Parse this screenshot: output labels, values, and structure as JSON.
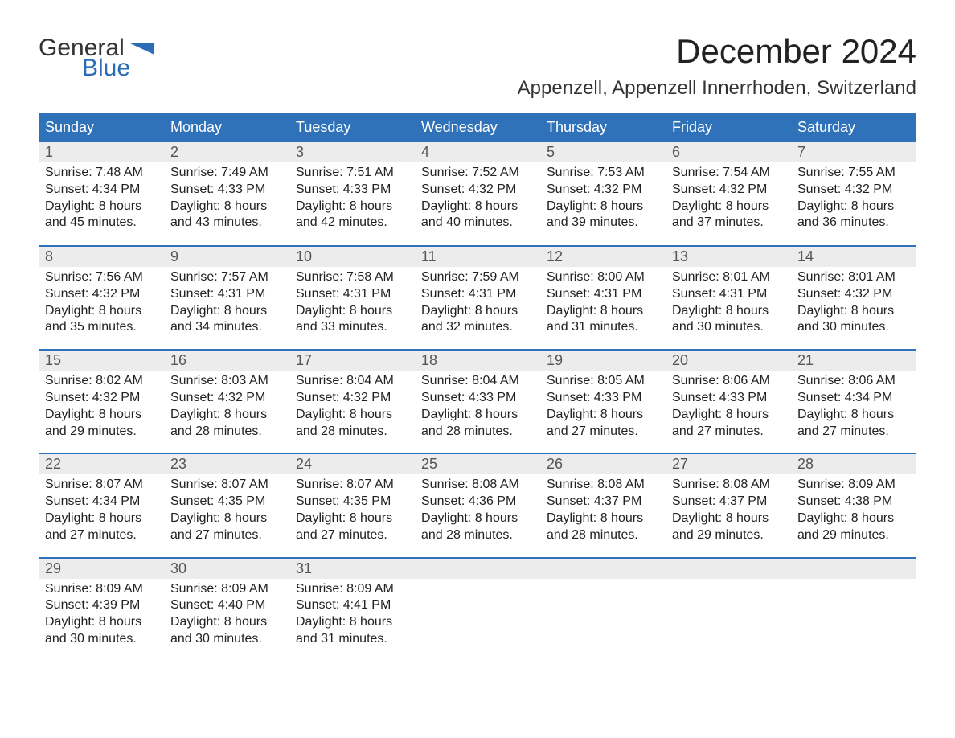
{
  "logo": {
    "general": "General",
    "blue": "Blue",
    "flag_color": "#2a6db6"
  },
  "title": "December 2024",
  "location": "Appenzell, Appenzell Innerrhoden, Switzerland",
  "colors": {
    "header_bg": "#2f72b9",
    "header_text": "#ffffff",
    "daybar_bg": "#ececec",
    "week_border": "#2f72b9",
    "text": "#222222",
    "daynum": "#555555"
  },
  "weekdays": [
    "Sunday",
    "Monday",
    "Tuesday",
    "Wednesday",
    "Thursday",
    "Friday",
    "Saturday"
  ],
  "weeks": [
    [
      {
        "n": "1",
        "sr": "Sunrise: 7:48 AM",
        "ss": "Sunset: 4:34 PM",
        "dl1": "Daylight: 8 hours",
        "dl2": "and 45 minutes."
      },
      {
        "n": "2",
        "sr": "Sunrise: 7:49 AM",
        "ss": "Sunset: 4:33 PM",
        "dl1": "Daylight: 8 hours",
        "dl2": "and 43 minutes."
      },
      {
        "n": "3",
        "sr": "Sunrise: 7:51 AM",
        "ss": "Sunset: 4:33 PM",
        "dl1": "Daylight: 8 hours",
        "dl2": "and 42 minutes."
      },
      {
        "n": "4",
        "sr": "Sunrise: 7:52 AM",
        "ss": "Sunset: 4:32 PM",
        "dl1": "Daylight: 8 hours",
        "dl2": "and 40 minutes."
      },
      {
        "n": "5",
        "sr": "Sunrise: 7:53 AM",
        "ss": "Sunset: 4:32 PM",
        "dl1": "Daylight: 8 hours",
        "dl2": "and 39 minutes."
      },
      {
        "n": "6",
        "sr": "Sunrise: 7:54 AM",
        "ss": "Sunset: 4:32 PM",
        "dl1": "Daylight: 8 hours",
        "dl2": "and 37 minutes."
      },
      {
        "n": "7",
        "sr": "Sunrise: 7:55 AM",
        "ss": "Sunset: 4:32 PM",
        "dl1": "Daylight: 8 hours",
        "dl2": "and 36 minutes."
      }
    ],
    [
      {
        "n": "8",
        "sr": "Sunrise: 7:56 AM",
        "ss": "Sunset: 4:32 PM",
        "dl1": "Daylight: 8 hours",
        "dl2": "and 35 minutes."
      },
      {
        "n": "9",
        "sr": "Sunrise: 7:57 AM",
        "ss": "Sunset: 4:31 PM",
        "dl1": "Daylight: 8 hours",
        "dl2": "and 34 minutes."
      },
      {
        "n": "10",
        "sr": "Sunrise: 7:58 AM",
        "ss": "Sunset: 4:31 PM",
        "dl1": "Daylight: 8 hours",
        "dl2": "and 33 minutes."
      },
      {
        "n": "11",
        "sr": "Sunrise: 7:59 AM",
        "ss": "Sunset: 4:31 PM",
        "dl1": "Daylight: 8 hours",
        "dl2": "and 32 minutes."
      },
      {
        "n": "12",
        "sr": "Sunrise: 8:00 AM",
        "ss": "Sunset: 4:31 PM",
        "dl1": "Daylight: 8 hours",
        "dl2": "and 31 minutes."
      },
      {
        "n": "13",
        "sr": "Sunrise: 8:01 AM",
        "ss": "Sunset: 4:31 PM",
        "dl1": "Daylight: 8 hours",
        "dl2": "and 30 minutes."
      },
      {
        "n": "14",
        "sr": "Sunrise: 8:01 AM",
        "ss": "Sunset: 4:32 PM",
        "dl1": "Daylight: 8 hours",
        "dl2": "and 30 minutes."
      }
    ],
    [
      {
        "n": "15",
        "sr": "Sunrise: 8:02 AM",
        "ss": "Sunset: 4:32 PM",
        "dl1": "Daylight: 8 hours",
        "dl2": "and 29 minutes."
      },
      {
        "n": "16",
        "sr": "Sunrise: 8:03 AM",
        "ss": "Sunset: 4:32 PM",
        "dl1": "Daylight: 8 hours",
        "dl2": "and 28 minutes."
      },
      {
        "n": "17",
        "sr": "Sunrise: 8:04 AM",
        "ss": "Sunset: 4:32 PM",
        "dl1": "Daylight: 8 hours",
        "dl2": "and 28 minutes."
      },
      {
        "n": "18",
        "sr": "Sunrise: 8:04 AM",
        "ss": "Sunset: 4:33 PM",
        "dl1": "Daylight: 8 hours",
        "dl2": "and 28 minutes."
      },
      {
        "n": "19",
        "sr": "Sunrise: 8:05 AM",
        "ss": "Sunset: 4:33 PM",
        "dl1": "Daylight: 8 hours",
        "dl2": "and 27 minutes."
      },
      {
        "n": "20",
        "sr": "Sunrise: 8:06 AM",
        "ss": "Sunset: 4:33 PM",
        "dl1": "Daylight: 8 hours",
        "dl2": "and 27 minutes."
      },
      {
        "n": "21",
        "sr": "Sunrise: 8:06 AM",
        "ss": "Sunset: 4:34 PM",
        "dl1": "Daylight: 8 hours",
        "dl2": "and 27 minutes."
      }
    ],
    [
      {
        "n": "22",
        "sr": "Sunrise: 8:07 AM",
        "ss": "Sunset: 4:34 PM",
        "dl1": "Daylight: 8 hours",
        "dl2": "and 27 minutes."
      },
      {
        "n": "23",
        "sr": "Sunrise: 8:07 AM",
        "ss": "Sunset: 4:35 PM",
        "dl1": "Daylight: 8 hours",
        "dl2": "and 27 minutes."
      },
      {
        "n": "24",
        "sr": "Sunrise: 8:07 AM",
        "ss": "Sunset: 4:35 PM",
        "dl1": "Daylight: 8 hours",
        "dl2": "and 27 minutes."
      },
      {
        "n": "25",
        "sr": "Sunrise: 8:08 AM",
        "ss": "Sunset: 4:36 PM",
        "dl1": "Daylight: 8 hours",
        "dl2": "and 28 minutes."
      },
      {
        "n": "26",
        "sr": "Sunrise: 8:08 AM",
        "ss": "Sunset: 4:37 PM",
        "dl1": "Daylight: 8 hours",
        "dl2": "and 28 minutes."
      },
      {
        "n": "27",
        "sr": "Sunrise: 8:08 AM",
        "ss": "Sunset: 4:37 PM",
        "dl1": "Daylight: 8 hours",
        "dl2": "and 29 minutes."
      },
      {
        "n": "28",
        "sr": "Sunrise: 8:09 AM",
        "ss": "Sunset: 4:38 PM",
        "dl1": "Daylight: 8 hours",
        "dl2": "and 29 minutes."
      }
    ],
    [
      {
        "n": "29",
        "sr": "Sunrise: 8:09 AM",
        "ss": "Sunset: 4:39 PM",
        "dl1": "Daylight: 8 hours",
        "dl2": "and 30 minutes."
      },
      {
        "n": "30",
        "sr": "Sunrise: 8:09 AM",
        "ss": "Sunset: 4:40 PM",
        "dl1": "Daylight: 8 hours",
        "dl2": "and 30 minutes."
      },
      {
        "n": "31",
        "sr": "Sunrise: 8:09 AM",
        "ss": "Sunset: 4:41 PM",
        "dl1": "Daylight: 8 hours",
        "dl2": "and 31 minutes."
      },
      {
        "empty": true
      },
      {
        "empty": true
      },
      {
        "empty": true
      },
      {
        "empty": true
      }
    ]
  ]
}
